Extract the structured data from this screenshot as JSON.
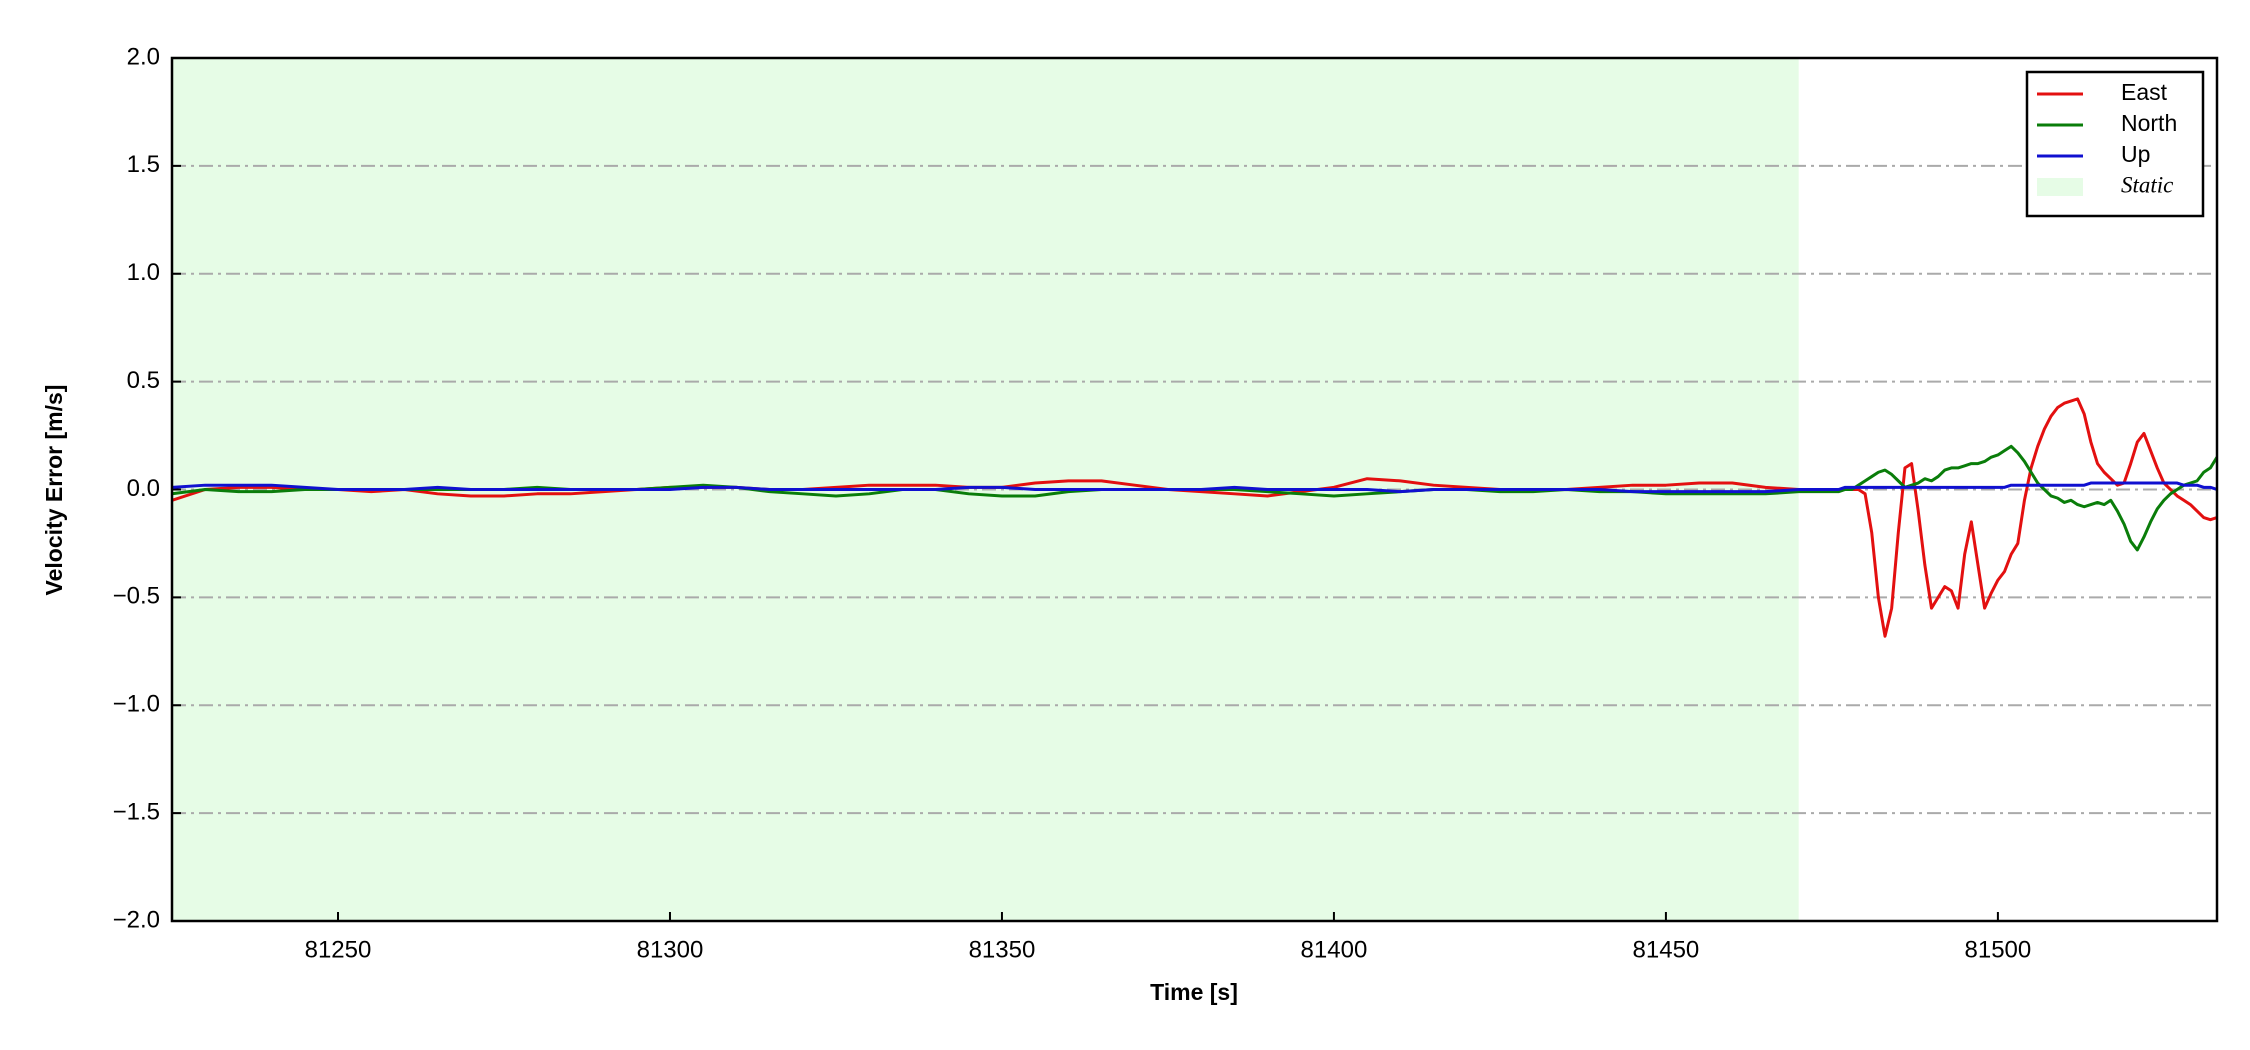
{
  "chart_data": {
    "type": "line",
    "xlabel": "Time [s]",
    "ylabel": "Velocity Error [m/s]",
    "xlim": [
      81225,
      81533
    ],
    "ylim": [
      -2.0,
      2.0
    ],
    "xticks": [
      81250,
      81300,
      81350,
      81400,
      81450,
      81500
    ],
    "yticks": [
      {
        "value": -2.0,
        "label": "−2.0"
      },
      {
        "value": -1.5,
        "label": "−1.5"
      },
      {
        "value": -1.0,
        "label": "−1.0"
      },
      {
        "value": -0.5,
        "label": "−0.5"
      },
      {
        "value": 0.0,
        "label": "0.0"
      },
      {
        "value": 0.5,
        "label": "0.5"
      },
      {
        "value": 1.0,
        "label": "1.0"
      },
      {
        "value": 1.5,
        "label": "1.5"
      },
      {
        "value": 2.0,
        "label": "2.0"
      }
    ],
    "grid": true,
    "legend": "upper right",
    "shaded_spans": [
      {
        "name": "Static",
        "start": 81225,
        "end": 81470,
        "color": "#e6fce6"
      }
    ],
    "x": [
      81225,
      81230,
      81235,
      81240,
      81245,
      81250,
      81255,
      81260,
      81265,
      81270,
      81275,
      81280,
      81285,
      81290,
      81295,
      81300,
      81305,
      81310,
      81315,
      81320,
      81325,
      81330,
      81335,
      81340,
      81345,
      81350,
      81355,
      81360,
      81365,
      81370,
      81375,
      81380,
      81385,
      81390,
      81395,
      81400,
      81405,
      81410,
      81415,
      81420,
      81425,
      81430,
      81435,
      81440,
      81445,
      81450,
      81455,
      81460,
      81465,
      81470,
      81475,
      81476,
      81477,
      81478,
      81479,
      81480,
      81481,
      81482,
      81483,
      81484,
      81485,
      81486,
      81487,
      81488,
      81489,
      81490,
      81491,
      81492,
      81493,
      81494,
      81495,
      81496,
      81497,
      81498,
      81499,
      81500,
      81501,
      81502,
      81503,
      81504,
      81505,
      81506,
      81507,
      81508,
      81509,
      81510,
      81511,
      81512,
      81513,
      81514,
      81515,
      81516,
      81517,
      81518,
      81519,
      81520,
      81521,
      81522,
      81523,
      81524,
      81525,
      81526,
      81527,
      81528,
      81529,
      81530,
      81531,
      81532,
      81533
    ],
    "series": [
      {
        "name": "East",
        "color": "#e31010",
        "values": [
          -0.05,
          0.0,
          0.01,
          0.01,
          0.0,
          0.0,
          -0.01,
          0.0,
          -0.02,
          -0.03,
          -0.03,
          -0.02,
          -0.02,
          -0.01,
          0.0,
          0.01,
          0.01,
          0.01,
          0.0,
          0.0,
          0.01,
          0.02,
          0.02,
          0.02,
          0.01,
          0.01,
          0.03,
          0.04,
          0.04,
          0.02,
          0.0,
          -0.01,
          -0.02,
          -0.03,
          -0.01,
          0.01,
          0.05,
          0.04,
          0.02,
          0.01,
          0.0,
          0.0,
          0.0,
          0.01,
          0.02,
          0.02,
          0.03,
          0.03,
          0.01,
          0.0,
          0.0,
          0.0,
          0.0,
          0.0,
          0.0,
          -0.02,
          -0.2,
          -0.5,
          -0.68,
          -0.55,
          -0.2,
          0.1,
          0.12,
          -0.1,
          -0.35,
          -0.55,
          -0.5,
          -0.45,
          -0.47,
          -0.55,
          -0.3,
          -0.15,
          -0.35,
          -0.55,
          -0.48,
          -0.42,
          -0.38,
          -0.3,
          -0.25,
          -0.05,
          0.1,
          0.2,
          0.28,
          0.34,
          0.38,
          0.4,
          0.41,
          0.42,
          0.35,
          0.22,
          0.12,
          0.08,
          0.05,
          0.02,
          0.03,
          0.12,
          0.22,
          0.26,
          0.18,
          0.1,
          0.03,
          0.0,
          -0.03,
          -0.05,
          -0.07,
          -0.1,
          -0.13,
          -0.14,
          -0.13
        ]
      },
      {
        "name": "North",
        "color": "#0a7d0a",
        "values": [
          -0.02,
          0.0,
          -0.01,
          -0.01,
          0.0,
          0.0,
          0.0,
          0.0,
          0.0,
          0.0,
          0.0,
          0.01,
          0.0,
          0.0,
          0.0,
          0.01,
          0.02,
          0.01,
          -0.01,
          -0.02,
          -0.03,
          -0.02,
          0.0,
          0.0,
          -0.02,
          -0.03,
          -0.03,
          -0.01,
          0.0,
          0.0,
          0.0,
          0.0,
          0.0,
          -0.01,
          -0.02,
          -0.03,
          -0.02,
          -0.01,
          0.0,
          0.0,
          -0.01,
          -0.01,
          0.0,
          -0.01,
          -0.01,
          -0.02,
          -0.02,
          -0.02,
          -0.02,
          -0.01,
          -0.01,
          -0.01,
          0.0,
          0.0,
          0.02,
          0.04,
          0.06,
          0.08,
          0.09,
          0.07,
          0.04,
          0.01,
          0.02,
          0.03,
          0.05,
          0.04,
          0.06,
          0.09,
          0.1,
          0.1,
          0.11,
          0.12,
          0.12,
          0.13,
          0.15,
          0.16,
          0.18,
          0.2,
          0.17,
          0.13,
          0.08,
          0.03,
          0.0,
          -0.03,
          -0.04,
          -0.06,
          -0.05,
          -0.07,
          -0.08,
          -0.07,
          -0.06,
          -0.07,
          -0.05,
          -0.1,
          -0.16,
          -0.24,
          -0.28,
          -0.22,
          -0.15,
          -0.09,
          -0.05,
          -0.02,
          0.0,
          0.02,
          0.03,
          0.04,
          0.08,
          0.1,
          0.15
        ]
      },
      {
        "name": "Up",
        "color": "#1010d0",
        "values": [
          0.01,
          0.02,
          0.02,
          0.02,
          0.01,
          0.0,
          0.0,
          0.0,
          0.01,
          0.0,
          0.0,
          0.0,
          0.0,
          0.0,
          0.0,
          0.0,
          0.01,
          0.01,
          0.0,
          0.0,
          0.0,
          0.0,
          0.0,
          0.0,
          0.01,
          0.01,
          0.0,
          0.0,
          0.0,
          0.0,
          0.0,
          0.0,
          0.01,
          0.0,
          0.0,
          0.0,
          0.0,
          -0.01,
          0.0,
          0.0,
          0.0,
          0.0,
          0.0,
          0.0,
          -0.01,
          -0.01,
          -0.01,
          -0.01,
          -0.01,
          0.0,
          0.0,
          0.0,
          0.01,
          0.01,
          0.01,
          0.01,
          0.01,
          0.01,
          0.01,
          0.01,
          0.01,
          0.01,
          0.01,
          0.01,
          0.01,
          0.01,
          0.01,
          0.01,
          0.01,
          0.01,
          0.01,
          0.01,
          0.01,
          0.01,
          0.01,
          0.01,
          0.01,
          0.02,
          0.02,
          0.02,
          0.02,
          0.02,
          0.02,
          0.02,
          0.02,
          0.02,
          0.02,
          0.02,
          0.02,
          0.03,
          0.03,
          0.03,
          0.03,
          0.03,
          0.03,
          0.03,
          0.03,
          0.03,
          0.03,
          0.03,
          0.03,
          0.03,
          0.03,
          0.02,
          0.02,
          0.02,
          0.01,
          0.01,
          0.0
        ]
      }
    ]
  }
}
